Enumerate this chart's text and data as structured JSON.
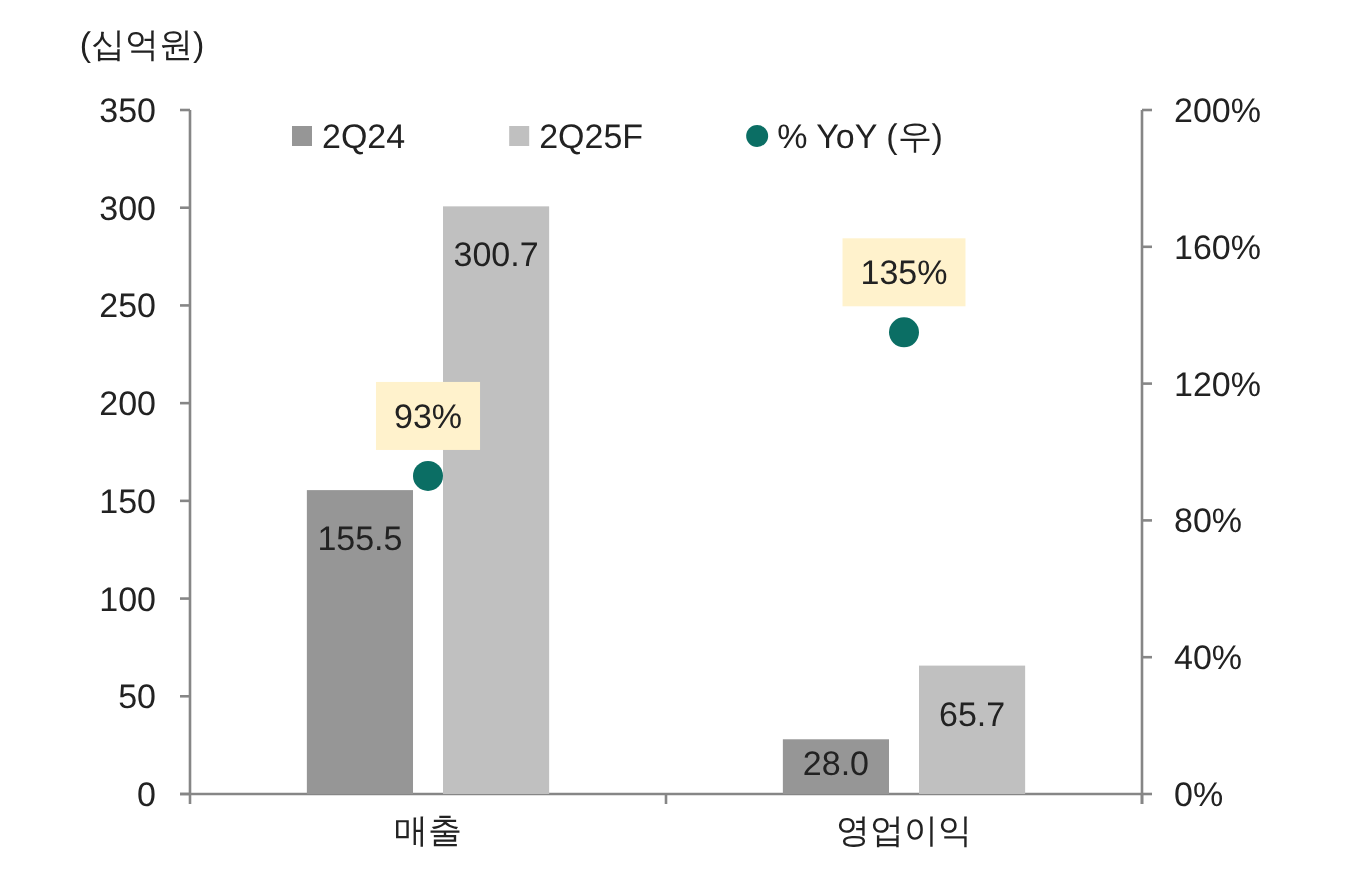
{
  "chart_data": {
    "type": "bar",
    "ylabel": "(십억원)",
    "categories": [
      "매출",
      "영업이익"
    ],
    "series": [
      {
        "name": "2Q24",
        "color": "#969696",
        "values": [
          155.5,
          28.0
        ],
        "value_labels": [
          "155.5",
          "28.0"
        ]
      },
      {
        "name": "2Q25F",
        "color": "#c0c0c0",
        "values": [
          300.7,
          65.7
        ],
        "value_labels": [
          "300.7",
          "65.7"
        ]
      },
      {
        "name": "% YoY (우)",
        "type": "scatter",
        "axis": "y2",
        "marker": "circle",
        "color": "#0b6e64",
        "values": [
          93,
          135
        ],
        "value_labels": [
          "93%",
          "135%"
        ]
      }
    ],
    "ylim": [
      0,
      350
    ],
    "yticks": [
      0,
      50,
      100,
      150,
      200,
      250,
      300,
      350
    ],
    "y2lim": [
      0,
      200
    ],
    "y2ticks": [
      {
        "value": 0,
        "label": "0%"
      },
      {
        "value": 40,
        "label": "40%"
      },
      {
        "value": 80,
        "label": "80%"
      },
      {
        "value": 120,
        "label": "120%"
      },
      {
        "value": 160,
        "label": "160%"
      },
      {
        "value": 200,
        "label": "200%"
      }
    ],
    "legend": "top",
    "grid": false
  }
}
